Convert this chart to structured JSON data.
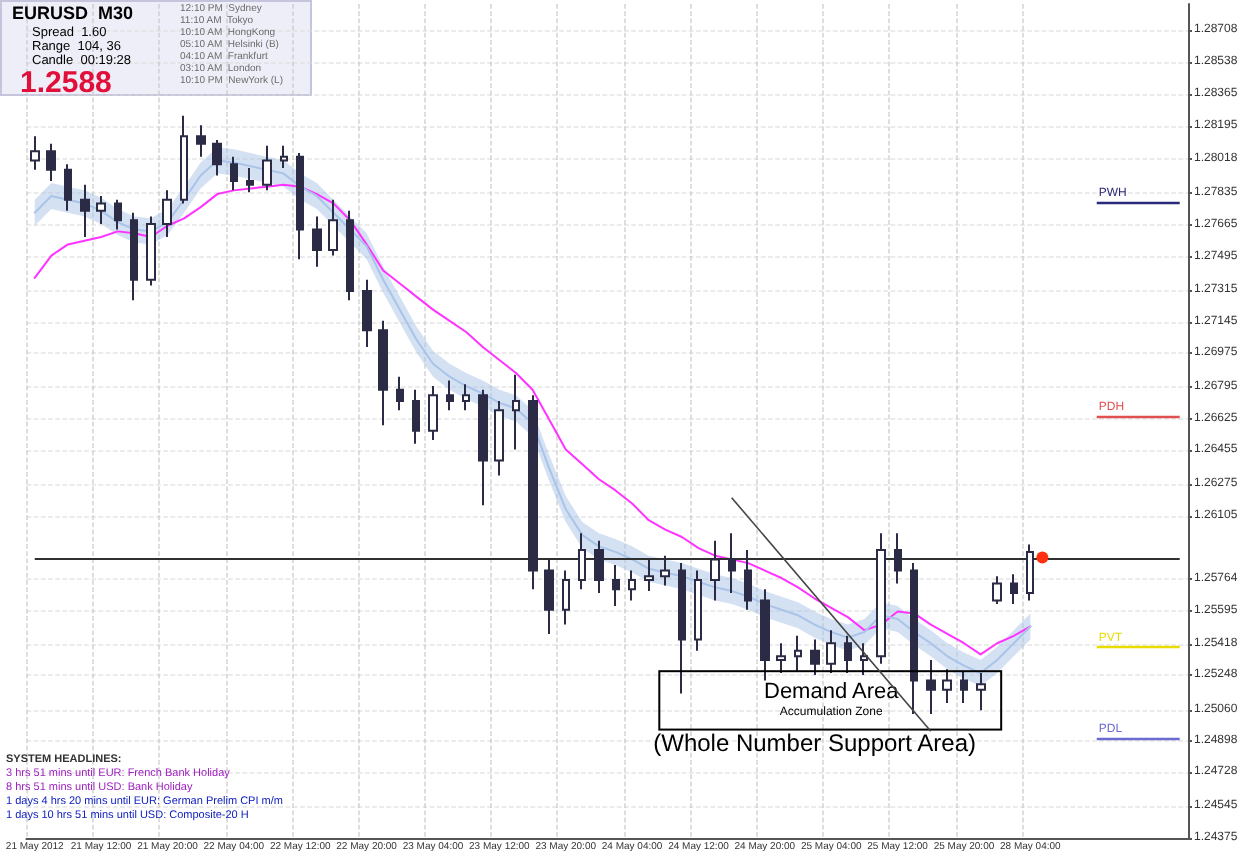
{
  "chart_data": {
    "type": "candlestick",
    "color": "#2b2b45",
    "marker": "none",
    "line_style": "solid",
    "grid": true,
    "categories": [
      "21 May 2012",
      null,
      null,
      null,
      "21 May 12:00",
      null,
      null,
      null,
      "21 May 20:00",
      null,
      null,
      null,
      "22 May 04:00",
      null,
      null,
      null,
      "22 May 12:00",
      null,
      null,
      null,
      "22 May 20:00",
      null,
      null,
      null,
      "23 May 04:00",
      null,
      null,
      null,
      "23 May 12:00",
      null,
      null,
      null,
      "23 May 20:00",
      null,
      null,
      null,
      "24 May 04:00",
      null,
      null,
      null,
      "24 May 12:00",
      null,
      null,
      null,
      "24 May 20:00",
      null,
      null,
      null,
      "25 May 04:00",
      null,
      null,
      null,
      "25 May 12:00",
      null,
      null,
      null,
      "25 May 20:00",
      null,
      null,
      null,
      "28 May 04:00",
      null,
      null,
      null,
      null,
      null,
      null,
      null,
      null,
      null
    ],
    "ohlc": [
      [
        1.2801,
        1.2814,
        1.2796,
        1.2806
      ],
      [
        1.2806,
        1.281,
        1.279,
        1.2796
      ],
      [
        1.2796,
        1.2799,
        1.2774,
        1.278
      ],
      [
        1.278,
        1.2788,
        1.276,
        1.2774
      ],
      [
        1.2774,
        1.2782,
        1.2767,
        1.2778
      ],
      [
        1.2778,
        1.278,
        1.2764,
        1.2769
      ],
      [
        1.2769,
        1.2773,
        1.2726,
        1.2737
      ],
      [
        1.2737,
        1.2771,
        1.2734,
        1.2767
      ],
      [
        1.2767,
        1.2785,
        1.276,
        1.278
      ],
      [
        1.278,
        1.2825,
        1.2778,
        1.2814
      ],
      [
        1.2814,
        1.282,
        1.2803,
        1.281
      ],
      [
        1.281,
        1.2812,
        1.2793,
        1.2799
      ],
      [
        1.2799,
        1.2803,
        1.2785,
        1.279
      ],
      [
        1.279,
        1.2797,
        1.2784,
        1.2788
      ],
      [
        1.2788,
        1.2809,
        1.2785,
        1.2801
      ],
      [
        1.2801,
        1.2809,
        1.2797,
        1.2803
      ],
      [
        1.2803,
        1.2805,
        1.2748,
        1.2764
      ],
      [
        1.2764,
        1.2771,
        1.2744,
        1.2753
      ],
      [
        1.2753,
        1.278,
        1.275,
        1.2769
      ],
      [
        1.2769,
        1.2774,
        1.2726,
        1.2731
      ],
      [
        1.2731,
        1.2737,
        1.2701,
        1.271
      ],
      [
        1.271,
        1.2715,
        1.2659,
        1.2678
      ],
      [
        1.2678,
        1.2685,
        1.2667,
        1.2672
      ],
      [
        1.2672,
        1.2678,
        1.2649,
        1.2656
      ],
      [
        1.2656,
        1.268,
        1.2651,
        1.2675
      ],
      [
        1.2675,
        1.2683,
        1.2667,
        1.2672
      ],
      [
        1.2672,
        1.2681,
        1.2667,
        1.2675
      ],
      [
        1.2675,
        1.2678,
        1.2616,
        1.264
      ],
      [
        1.264,
        1.2672,
        1.2632,
        1.2667
      ],
      [
        1.2667,
        1.2686,
        1.2646,
        1.2672
      ],
      [
        1.2672,
        1.2675,
        1.2571,
        1.2581
      ],
      [
        1.2581,
        1.2587,
        1.2547,
        1.256
      ],
      [
        1.256,
        1.2581,
        1.2552,
        1.2576
      ],
      [
        1.2576,
        1.2601,
        1.2571,
        1.2592
      ],
      [
        1.2592,
        1.2597,
        1.2569,
        1.2576
      ],
      [
        1.2576,
        1.2584,
        1.2562,
        1.2571
      ],
      [
        1.2571,
        1.2581,
        1.2565,
        1.2576
      ],
      [
        1.2576,
        1.2587,
        1.257,
        1.2578
      ],
      [
        1.2578,
        1.2589,
        1.2573,
        1.2581
      ],
      [
        1.2581,
        1.2585,
        1.2515,
        1.2544
      ],
      [
        1.2544,
        1.2581,
        1.2538,
        1.2576
      ],
      [
        1.2576,
        1.2597,
        1.2565,
        1.2587
      ],
      [
        1.2587,
        1.2601,
        1.2569,
        1.2581
      ],
      [
        1.2581,
        1.2592,
        1.256,
        1.2565
      ],
      [
        1.2565,
        1.2571,
        1.2522,
        1.2533
      ],
      [
        1.2533,
        1.2542,
        1.2526,
        1.2535
      ],
      [
        1.2535,
        1.2546,
        1.2527,
        1.2538
      ],
      [
        1.2538,
        1.2544,
        1.2525,
        1.2531
      ],
      [
        1.2531,
        1.2549,
        1.2526,
        1.2542
      ],
      [
        1.2542,
        1.2546,
        1.2526,
        1.2533
      ],
      [
        1.2533,
        1.2542,
        1.2525,
        1.2535
      ],
      [
        1.2535,
        1.2601,
        1.2531,
        1.2592
      ],
      [
        1.2592,
        1.2601,
        1.2574,
        1.2581
      ],
      [
        1.2581,
        1.2585,
        1.2504,
        1.2522
      ],
      [
        1.2522,
        1.2533,
        1.2504,
        1.2517
      ],
      [
        1.2517,
        1.2528,
        1.251,
        1.2522
      ],
      [
        1.2522,
        1.2527,
        1.251,
        1.2517
      ],
      [
        1.2517,
        1.2526,
        1.2506,
        1.252
      ],
      [
        1.2565,
        1.2578,
        1.2563,
        1.2574
      ],
      [
        1.2574,
        1.2579,
        1.2563,
        1.2569
      ],
      [
        1.2569,
        1.2595,
        1.2565,
        1.2591
      ],
      null,
      null,
      null,
      null,
      null,
      null,
      null,
      null,
      null
    ],
    "series": [
      {
        "type": "line",
        "color": "#ff33ff",
        "values": [
          1.2738,
          1.275,
          1.2756,
          1.2758,
          1.276,
          1.2763,
          1.2762,
          1.276,
          1.2766,
          1.277,
          1.2776,
          1.2783,
          1.2785,
          1.2786,
          1.2787,
          1.2788,
          1.2787,
          1.2783,
          1.2778,
          1.2769,
          1.2756,
          1.2742,
          1.2735,
          1.2728,
          1.2721,
          1.2715,
          1.2709,
          1.2701,
          1.2694,
          1.2687,
          1.2678,
          1.2662,
          1.2646,
          1.2638,
          1.263,
          1.2624,
          1.2617,
          1.2608,
          1.2603,
          1.2599,
          1.2593,
          1.2589,
          1.2587,
          1.2585,
          1.2581,
          1.2577,
          1.2572,
          1.2566,
          1.2561,
          1.2556,
          1.2549,
          1.2552,
          1.2559,
          1.2558,
          1.2552,
          1.2547,
          1.2542,
          1.2536,
          1.2542,
          1.2546,
          1.2551,
          null,
          null,
          null,
          null,
          null,
          null,
          null,
          null,
          null
        ]
      },
      {
        "type": "line",
        "color": "#a9c4e8",
        "values": [
          1.2773,
          1.2782,
          1.278,
          1.2778,
          1.2774,
          1.2768,
          1.2764,
          1.2763,
          1.2768,
          1.278,
          1.2793,
          1.2801,
          1.28,
          1.2798,
          1.2796,
          1.2794,
          1.2787,
          1.2782,
          1.2773,
          1.2764,
          1.2755,
          1.2737,
          1.2721,
          1.2705,
          1.2692,
          1.2685,
          1.268,
          1.2676,
          1.2671,
          1.2668,
          1.266,
          1.2636,
          1.2614,
          1.26,
          1.2594,
          1.2591,
          1.2587,
          1.2582,
          1.258,
          1.2578,
          1.2575,
          1.2572,
          1.257,
          1.2567,
          1.2563,
          1.256,
          1.2557,
          1.2552,
          1.2548,
          1.2545,
          1.2548,
          1.2557,
          1.2555,
          1.2548,
          1.2542,
          1.2535,
          1.253,
          1.2526,
          1.2533,
          1.2542,
          1.2551,
          null,
          null,
          null,
          null,
          null,
          null,
          null,
          null,
          null
        ],
        "lower": [
          1.2766,
          1.2775,
          1.2773,
          1.2771,
          1.2767,
          1.2761,
          1.2757,
          1.2756,
          1.2761,
          1.2773,
          1.2786,
          1.2794,
          1.2793,
          1.2791,
          1.2789,
          1.2787,
          1.278,
          1.2775,
          1.2766,
          1.2757,
          1.2748,
          1.273,
          1.2714,
          1.2698,
          1.2685,
          1.2678,
          1.2673,
          1.2669,
          1.2664,
          1.2661,
          1.2653,
          1.2629,
          1.2607,
          1.2593,
          1.2587,
          1.2584,
          1.258,
          1.2575,
          1.2573,
          1.2571,
          1.2568,
          1.2565,
          1.2563,
          1.256,
          1.2556,
          1.2553,
          1.255,
          1.2545,
          1.2541,
          1.2538,
          1.2541,
          1.255,
          1.2548,
          1.2541,
          1.2535,
          1.2528,
          1.2523,
          1.2519,
          1.2526,
          1.2535,
          1.2544,
          null,
          null,
          null,
          null,
          null,
          null,
          null,
          null,
          null
        ],
        "upper": [
          1.278,
          1.2789,
          1.2787,
          1.2785,
          1.2781,
          1.2775,
          1.2771,
          1.277,
          1.2775,
          1.2787,
          1.28,
          1.2808,
          1.2807,
          1.2805,
          1.2803,
          1.2801,
          1.2794,
          1.2789,
          1.278,
          1.2771,
          1.2762,
          1.2744,
          1.2728,
          1.2712,
          1.2699,
          1.2692,
          1.2687,
          1.2683,
          1.2678,
          1.2675,
          1.2667,
          1.2643,
          1.2621,
          1.2607,
          1.2601,
          1.2598,
          1.2594,
          1.2589,
          1.2587,
          1.2585,
          1.2582,
          1.2579,
          1.2577,
          1.2574,
          1.257,
          1.2567,
          1.2564,
          1.2559,
          1.2555,
          1.2552,
          1.2555,
          1.2564,
          1.2562,
          1.2555,
          1.2549,
          1.2542,
          1.2537,
          1.2533,
          1.254,
          1.2549,
          1.2558,
          null,
          null,
          null,
          null,
          null,
          null,
          null,
          null,
          null
        ]
      }
    ],
    "ylim": [
      1.24375,
      1.2885
    ],
    "yticks": [
      1.28708,
      1.28538,
      1.28365,
      1.28195,
      1.28018,
      1.27835,
      1.27665,
      1.27495,
      1.27315,
      1.27145,
      1.26975,
      1.26795,
      1.26625,
      1.26455,
      1.26275,
      1.26105,
      1.25764,
      1.25595,
      1.25418,
      1.25248,
      {
        "value": 1.2506,
        "label": "1.25060"
      },
      1.24898,
      1.24728,
      1.24545,
      1.24375
    ],
    "ref_lines": [
      {
        "axis": "y",
        "value": 1.2588,
        "color": "#303030"
      },
      {
        "axis": "y",
        "value": 1.2779,
        "label": "PWH",
        "color": "#2a2a7a"
      },
      {
        "axis": "y",
        "value": 1.2664,
        "label": "PDH",
        "color": "#e05050"
      },
      {
        "axis": "y",
        "value": 1.254,
        "label": "PVT",
        "color": "#e8dc00"
      },
      {
        "axis": "y",
        "value": 1.2491,
        "label": "PDL",
        "color": "#6a6ad0"
      }
    ],
    "annotations": [
      "EURUSD  M30",
      "Spread  1.60",
      "Range  104, 36",
      "Candle  00:19:28",
      "1.2588",
      "12:10 PM  Sydney",
      "11:10 AM  Tokyo",
      "10:10 AM  HongKong",
      "05:10 AM  Helsinki (B)",
      "04:10 AM  Frankfurt",
      "03:10 AM  London",
      "10:10 PM  NewYork (L)",
      "SYSTEM HEADLINES:",
      "3 hrs 51 mins until EUR: French Bank Holiday",
      "8 hrs 51 mins until USD: Bank Holiday",
      "1 days 4 hrs 20 mins until EUR: German Prelim CPI m/m",
      "1 days 10 hrs 51 mins until USD: Composite-20 H",
      "Demand Area",
      "Accumulation Zone",
      "(Whole Number Support Area)"
    ]
  }
}
